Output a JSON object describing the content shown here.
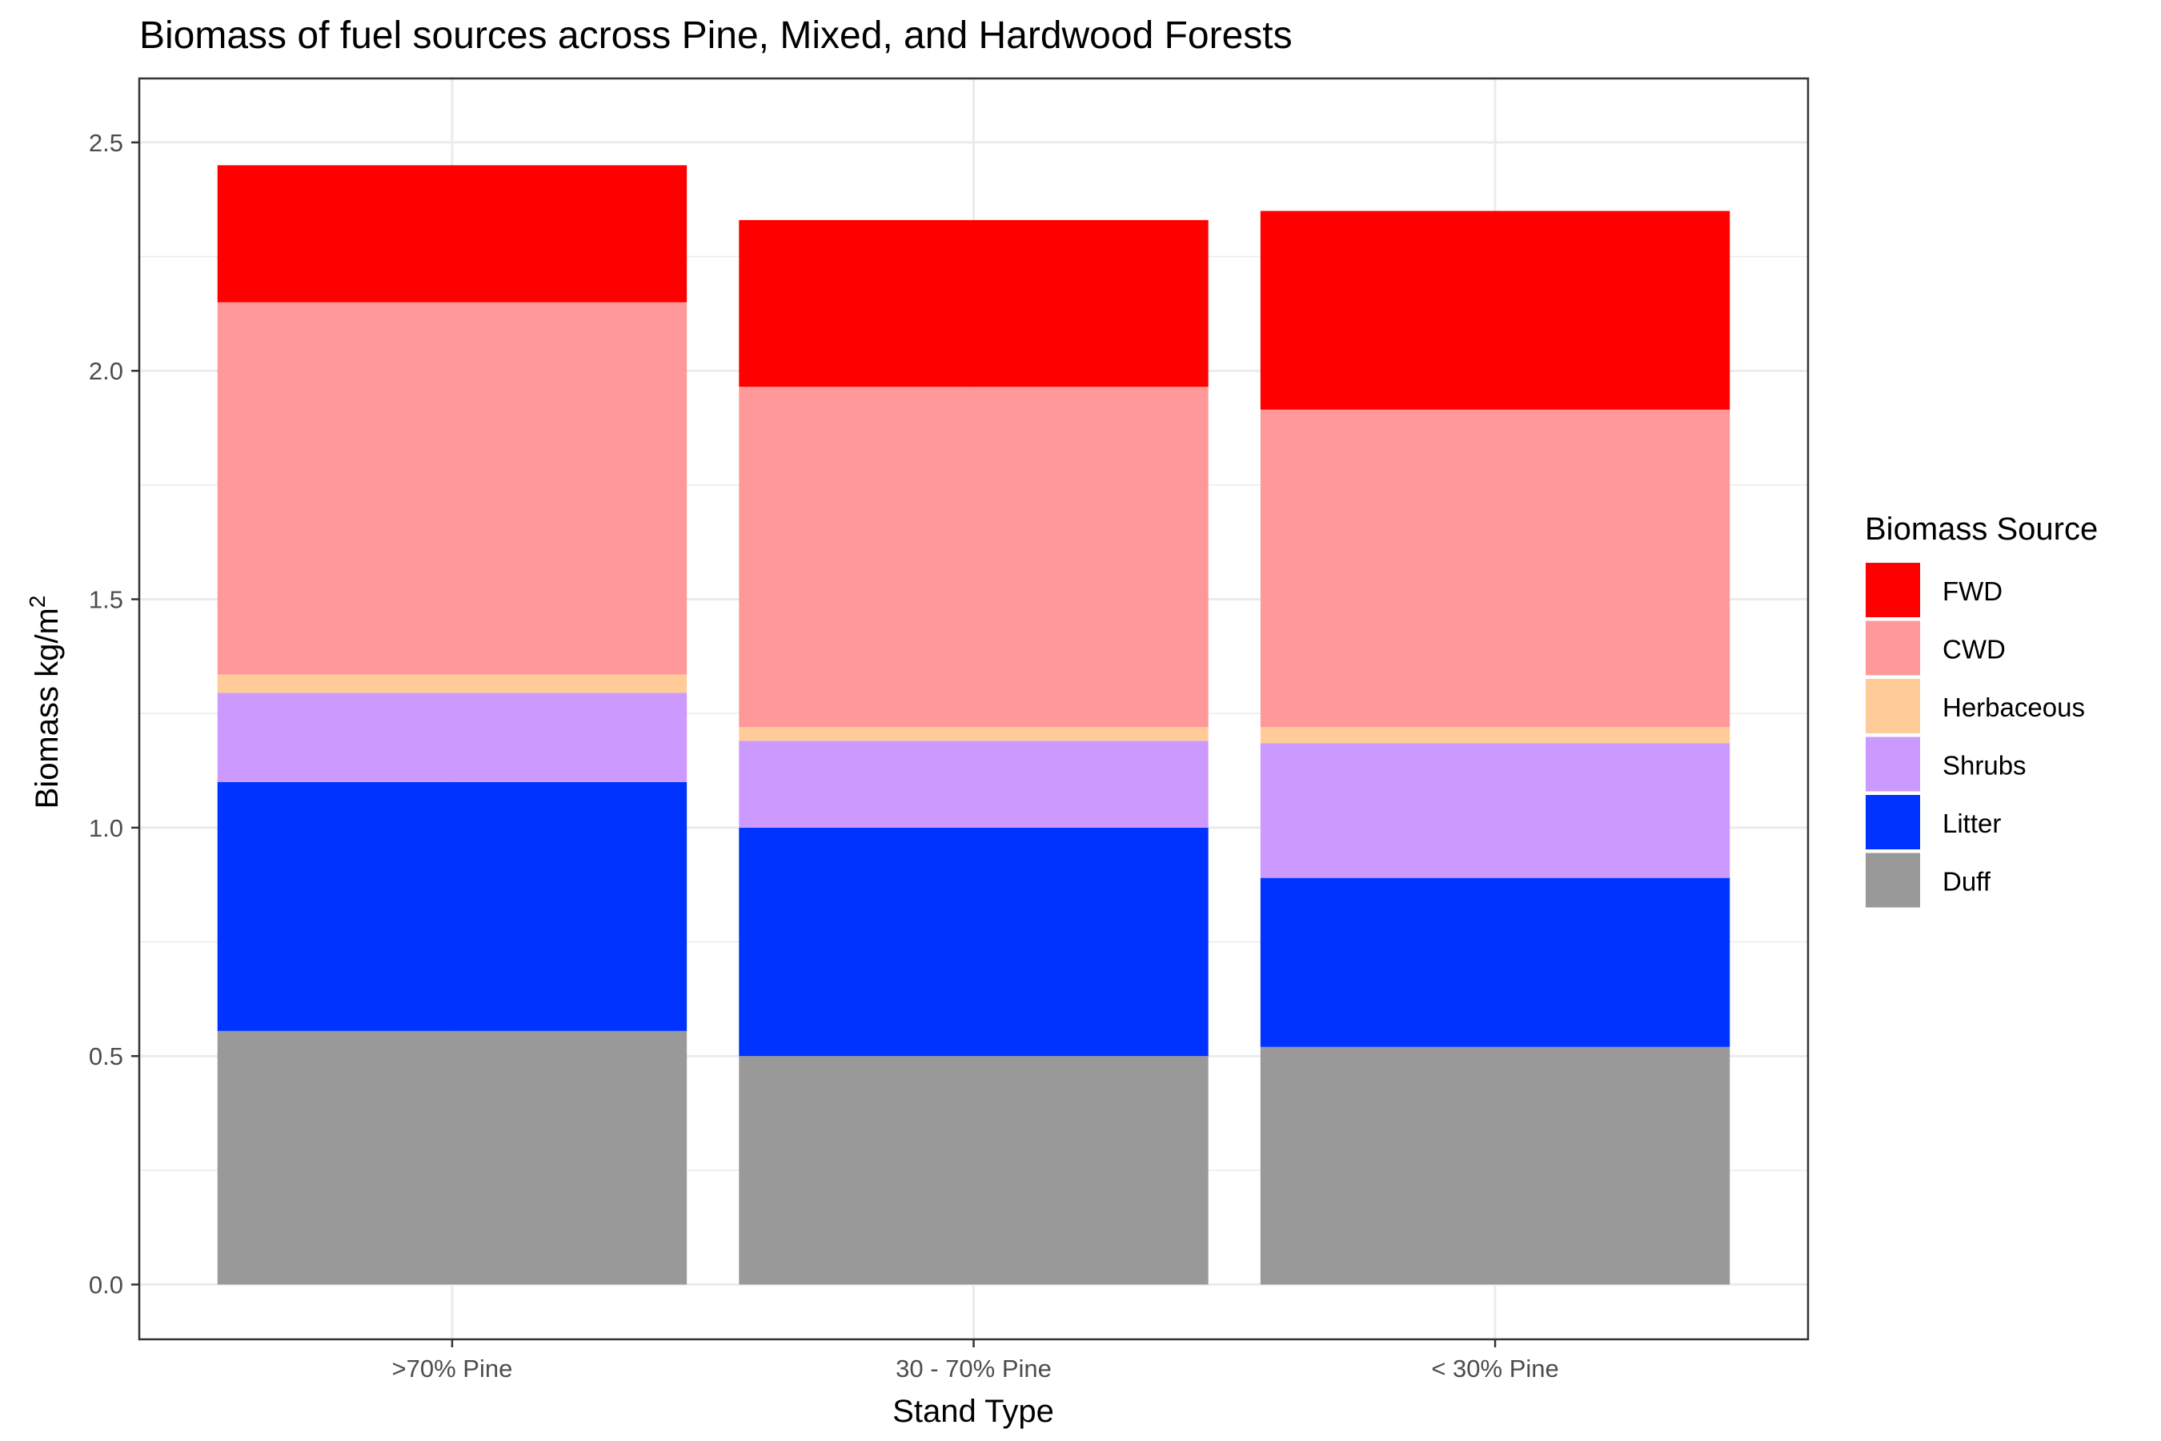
{
  "chart_data": {
    "type": "bar",
    "stacked": true,
    "title": "Biomass of fuel sources across Pine, Mixed, and Hardwood Forests",
    "xlabel": "Stand Type",
    "ylabel": "Biomass kg/m",
    "ylabel_superscript": "2",
    "ylim": [
      -0.12,
      2.64
    ],
    "yticks": [
      "0.0",
      "0.5",
      "1.0",
      "1.5",
      "2.0",
      "2.5"
    ],
    "grid": true,
    "categories": [
      ">70% Pine",
      "30 - 70% Pine",
      "< 30% Pine"
    ],
    "legend": {
      "title": "Biomass Source",
      "position": "right",
      "order": [
        "FWD",
        "CWD",
        "Herbaceous",
        "Shrubs",
        "Litter",
        "Duff"
      ]
    },
    "series": [
      {
        "name": "Duff",
        "color": "#999999",
        "values": [
          0.555,
          0.5,
          0.52
        ]
      },
      {
        "name": "Litter",
        "color": "#0033FF",
        "values": [
          0.545,
          0.5,
          0.37
        ]
      },
      {
        "name": "Shrubs",
        "color": "#CC99FF",
        "values": [
          0.195,
          0.19,
          0.295
        ]
      },
      {
        "name": "Herbaceous",
        "color": "#FFCC99",
        "values": [
          0.04,
          0.03,
          0.035
        ]
      },
      {
        "name": "CWD",
        "color": "#FF9999",
        "values": [
          0.815,
          0.745,
          0.695
        ]
      },
      {
        "name": "FWD",
        "color": "#FF0000",
        "values": [
          0.3,
          0.365,
          0.435
        ]
      }
    ]
  }
}
